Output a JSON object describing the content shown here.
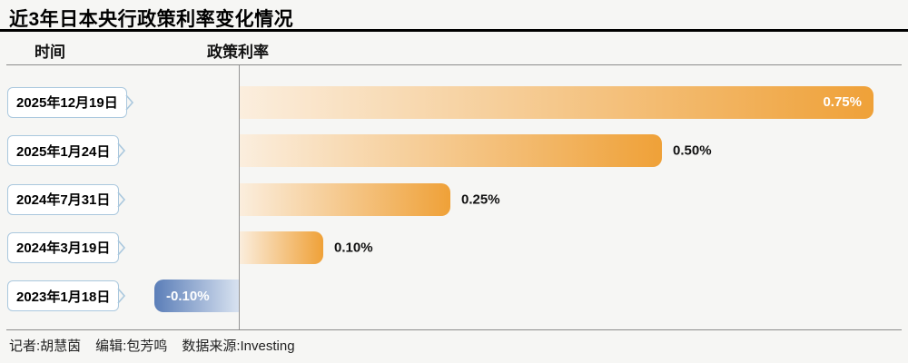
{
  "title": "近3年日本央行政策利率变化情况",
  "columns": {
    "time": "时间",
    "rate": "政策利率"
  },
  "footer": {
    "reporter": "记者:胡慧茵",
    "editor": "编辑:包芳鸣",
    "source": "数据来源:Investing"
  },
  "colors": {
    "bar_positive": "#EFA138",
    "bar_positive_light": "#FBEEDE",
    "bar_negative": "#5B7EB8",
    "bar_negative_light": "#D8E2F0",
    "date_box_border": "#AAC8DE",
    "axis": "#949494",
    "title_rule": "#000000",
    "background": "#F6F6F4"
  },
  "chart_data": {
    "type": "bar",
    "orientation": "horizontal",
    "title": "近3年日本央行政策利率变化情况",
    "categories": [
      "2025年12月19日",
      "2025年1月24日",
      "2024年7月31日",
      "2024年3月19日",
      "2023年1月18日"
    ],
    "values": [
      0.75,
      0.5,
      0.25,
      0.1,
      -0.1
    ],
    "labels": [
      "0.75%",
      "0.50%",
      "0.25%",
      "0.10%",
      "-0.10%"
    ],
    "label_position": [
      "inside",
      "outside",
      "outside",
      "outside",
      "inside"
    ],
    "unit": "%",
    "xlim": [
      -0.1,
      0.75
    ],
    "gridlines": false,
    "value_axis_ticks_visible": false,
    "legend": "none"
  }
}
